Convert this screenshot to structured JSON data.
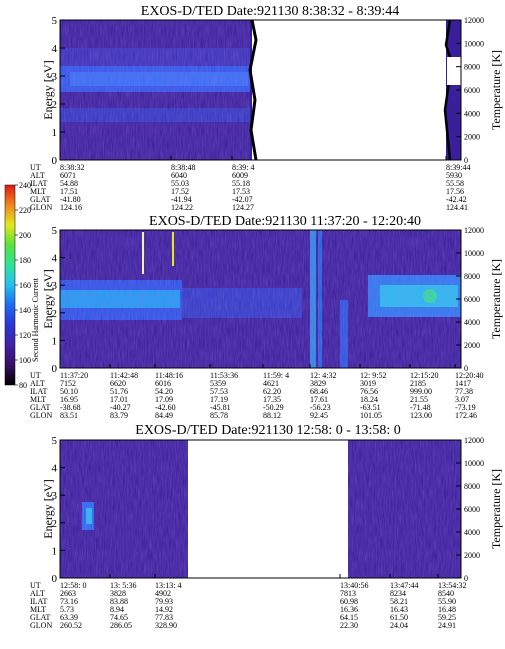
{
  "chart_data": [
    {
      "type": "heatmap",
      "title": "EXOS-D/TED   Date:921130   8:38:32 - 8:39:44",
      "ylabel": "Energy [eV]",
      "ylabel_right": "Temperature [K]",
      "ylim": [
        0,
        5
      ],
      "ylim_right": [
        0,
        12000
      ],
      "yticks": [
        "0",
        "1",
        "2",
        "3",
        "4",
        "5"
      ],
      "yticks_right": [
        "0",
        "2000",
        "4000",
        "6000",
        "8000",
        "10000",
        "12000"
      ],
      "orbit_rows": [
        "UT",
        "ALT",
        "ILAT",
        "MLT",
        "GLAT",
        "GLON"
      ],
      "orbit_columns": [
        {
          "values": [
            "8:38:32",
            "6071",
            "54.88",
            "17.51",
            "-41.80",
            "124.16"
          ]
        },
        {
          "values": [
            "8:38:48",
            "6040",
            "55.03",
            "17.52",
            "-41.94",
            "124.22"
          ]
        },
        {
          "values": [
            "8:39: 4",
            "6009",
            "55.18",
            "17.53",
            "-42.07",
            "124.27"
          ]
        },
        {
          "values": [
            "8:39:44",
            "5930",
            "55.58",
            "17.56",
            "-42.42",
            "124.41"
          ]
        }
      ],
      "data_gaps": [
        {
          "from_fraction": 0.35,
          "to_fraction": 0.95
        }
      ]
    },
    {
      "type": "heatmap",
      "title": "EXOS-D/TED   Date:921130   11:37:20 - 12:20:40",
      "ylabel": "Energy [eV]",
      "ylabel_right": "Temperature [K]",
      "ylim": [
        0,
        5
      ],
      "ylim_right": [
        0,
        12000
      ],
      "yticks": [
        "0",
        "1",
        "2",
        "3",
        "4",
        "5"
      ],
      "yticks_right": [
        "0",
        "2000",
        "4000",
        "6000",
        "8000",
        "10000",
        "12000"
      ],
      "colorbar": {
        "label": "Second Harmonic Current",
        "range": [
          80,
          240
        ],
        "ticks": [
          "80",
          "100",
          "120",
          "140",
          "160",
          "180",
          "200",
          "220",
          "240"
        ]
      },
      "orbit_rows": [
        "UT",
        "ALT",
        "ILAT",
        "MLT",
        "GLAT",
        "GLON"
      ],
      "orbit_columns": [
        {
          "values": [
            "11:37:20",
            "7152",
            "50.10",
            "16.95",
            "-38.68",
            "83.51"
          ]
        },
        {
          "values": [
            "11:42:48",
            "6620",
            "51.76",
            "17.01",
            "-40.27",
            "83.79"
          ]
        },
        {
          "values": [
            "11:48:16",
            "6016",
            "54.20",
            "17.09",
            "-42.60",
            "84.49"
          ]
        },
        {
          "values": [
            "11:53:36",
            "5359",
            "57.53",
            "17.19",
            "-45.81",
            "85.78"
          ]
        },
        {
          "values": [
            "11:59: 4",
            "4621",
            "62.20",
            "17.35",
            "-50.29",
            "88.12"
          ]
        },
        {
          "values": [
            "12: 4:32",
            "3829",
            "68.46",
            "17.61",
            "-56.23",
            "92.45"
          ]
        },
        {
          "values": [
            "12: 9:52",
            "3019",
            "76.56",
            "18.24",
            "-63.51",
            "101.05"
          ]
        },
        {
          "values": [
            "12:15:20",
            "2185",
            "999.00",
            "21.55",
            "-71.48",
            "123.00"
          ]
        },
        {
          "values": [
            "12:20:40",
            "1417",
            "77.38",
            "3.07",
            "-73.19",
            "172.46"
          ]
        }
      ],
      "data_gaps": []
    },
    {
      "type": "heatmap",
      "title": "EXOS-D/TED   Date:921130   12:58: 0 - 13:58: 0",
      "ylabel": "Energy [eV]",
      "ylabel_right": "Temperature [K]",
      "ylim": [
        0,
        5
      ],
      "ylim_right": [
        0,
        12000
      ],
      "yticks": [
        "0",
        "1",
        "2",
        "3",
        "4",
        "5"
      ],
      "yticks_right": [
        "0",
        "2000",
        "4000",
        "6000",
        "8000",
        "10000",
        "12000"
      ],
      "orbit_rows": [
        "UT",
        "ALT",
        "ILAT",
        "MLT",
        "GLAT",
        "GLON"
      ],
      "orbit_columns": [
        {
          "values": [
            "12:58: 0",
            "2663",
            "73.16",
            "5.73",
            "63.39",
            "260.52"
          ]
        },
        {
          "values": [
            "13: 5:36",
            "3828",
            "83.88",
            "8.94",
            "74.65",
            "286.05"
          ]
        },
        {
          "values": [
            "13:13: 4",
            "4902",
            "79.93",
            "14.92",
            "77.83",
            "328.90"
          ]
        },
        {
          "values": [
            "13:40:56",
            "7813",
            "60.98",
            "16.36",
            "64.15",
            "22.30"
          ]
        },
        {
          "values": [
            "13:47:44",
            "8234",
            "58.21",
            "16.43",
            "61.50",
            "24.04"
          ]
        },
        {
          "values": [
            "13:54:32",
            "8540",
            "55.90",
            "16.48",
            "59.25",
            "24.91"
          ]
        }
      ],
      "data_gaps": [
        {
          "from_fraction": 0.36,
          "to_fraction": 0.735
        }
      ]
    }
  ],
  "colors": {
    "background_level": "#3a1f9a",
    "palette": [
      "#000000",
      "#3a0d66",
      "#4222a6",
      "#2a36d6",
      "#1d6bf0",
      "#23c0f0",
      "#2fe39a",
      "#59e23b",
      "#e4e81a",
      "#f0861c",
      "#e11a14"
    ]
  }
}
